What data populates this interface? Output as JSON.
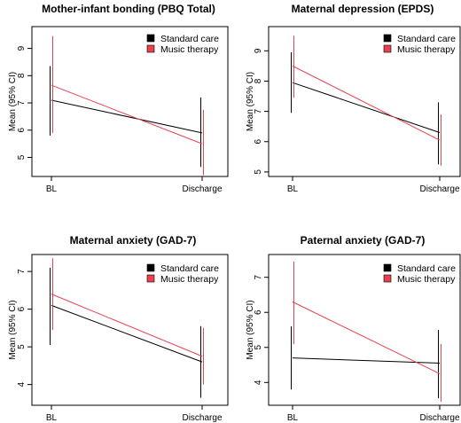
{
  "chart_data": [
    {
      "type": "line",
      "title": "Mother-infant bonding (PBQ Total)",
      "ylabel": "Mean (95% CI)",
      "categories": [
        "BL",
        "Discharge"
      ],
      "ylim": [
        4.3,
        9.8
      ],
      "yticks": [
        5,
        6,
        7,
        8,
        9
      ],
      "legend_position": "top-right",
      "series": [
        {
          "name": "Standard care",
          "color": "#000000",
          "values": [
            7.1,
            5.9
          ],
          "ci_low": [
            5.8,
            4.65
          ],
          "ci_high": [
            8.35,
            7.2
          ]
        },
        {
          "name": "Music therapy",
          "color": "#e8414f",
          "values": [
            7.65,
            5.5
          ],
          "ci_low": [
            5.9,
            4.35
          ],
          "ci_high": [
            9.45,
            6.75
          ]
        }
      ]
    },
    {
      "type": "line",
      "title": "Maternal depression (EPDS)",
      "ylabel": "Mean (95% CI)",
      "categories": [
        "BL",
        "Discharge"
      ],
      "ylim": [
        4.85,
        9.8
      ],
      "yticks": [
        5,
        6,
        7,
        8,
        9
      ],
      "legend_position": "top-right",
      "series": [
        {
          "name": "Standard care",
          "color": "#000000",
          "values": [
            7.95,
            6.3
          ],
          "ci_low": [
            6.95,
            5.25
          ],
          "ci_high": [
            8.95,
            7.3
          ]
        },
        {
          "name": "Music therapy",
          "color": "#e8414f",
          "values": [
            8.5,
            6.05
          ],
          "ci_low": [
            7.45,
            5.2
          ],
          "ci_high": [
            9.5,
            6.9
          ]
        }
      ]
    },
    {
      "type": "line",
      "title": "Maternal anxiety (GAD-7)",
      "ylabel": "Mean (95% CI)",
      "categories": [
        "BL",
        "Discharge"
      ],
      "ylim": [
        3.45,
        7.45
      ],
      "yticks": [
        4,
        5,
        6,
        7
      ],
      "legend_position": "top-right",
      "series": [
        {
          "name": "Standard care",
          "color": "#000000",
          "values": [
            6.1,
            4.6
          ],
          "ci_low": [
            5.05,
            3.65
          ],
          "ci_high": [
            7.1,
            5.55
          ]
        },
        {
          "name": "Music therapy",
          "color": "#e8414f",
          "values": [
            6.4,
            4.75
          ],
          "ci_low": [
            5.45,
            4.0
          ],
          "ci_high": [
            7.35,
            5.5
          ]
        }
      ]
    },
    {
      "type": "line",
      "title": "Paternal anxiety (GAD-7)",
      "ylabel": "Mean (95% CI)",
      "categories": [
        "BL",
        "Discharge"
      ],
      "ylim": [
        3.35,
        7.65
      ],
      "yticks": [
        4,
        5,
        6,
        7
      ],
      "legend_position": "top-right",
      "series": [
        {
          "name": "Standard care",
          "color": "#000000",
          "values": [
            4.7,
            4.55
          ],
          "ci_low": [
            3.8,
            3.55
          ],
          "ci_high": [
            5.6,
            5.5
          ]
        },
        {
          "name": "Music therapy",
          "color": "#e8414f",
          "values": [
            6.3,
            4.25
          ],
          "ci_low": [
            5.1,
            3.45
          ],
          "ci_high": [
            7.45,
            5.1
          ]
        }
      ]
    }
  ]
}
